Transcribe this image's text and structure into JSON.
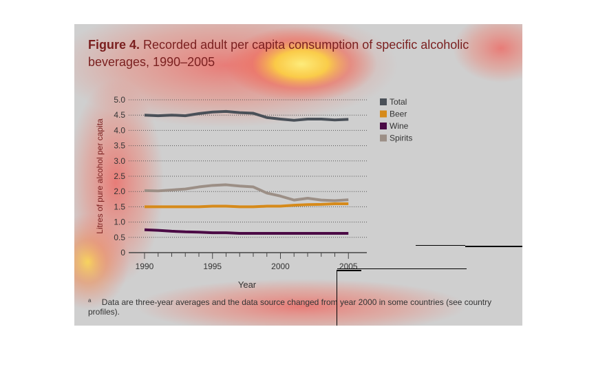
{
  "figure": {
    "label": "Figure 4.",
    "title": "Recorded adult per capita consumption of specific alcoholic beverages, 1990–2005",
    "footnote_marker": "a",
    "footnote": "Data are three-year averages and the data source changed from year 2000 in some countries (see country profiles)."
  },
  "chart_data": {
    "type": "line",
    "xlabel": "Year",
    "ylabel": "Litres of pure alcohol per capita",
    "xlim": [
      1990,
      2006
    ],
    "ylim": [
      0,
      5
    ],
    "x_ticks": [
      "1990",
      "1995",
      "2000",
      "2005"
    ],
    "y_ticks": [
      "0",
      "0.5",
      "1.0",
      "1.5",
      "2.0",
      "2.5",
      "3.0",
      "3.5",
      "4.0",
      "4.5",
      "5.0"
    ],
    "grid": "horizontal dotted",
    "legend_position": "right",
    "x": [
      1990,
      1991,
      1992,
      1993,
      1994,
      1995,
      1996,
      1997,
      1998,
      1999,
      2000,
      2001,
      2002,
      2003,
      2004,
      2005
    ],
    "series": [
      {
        "name": "Total",
        "color": "#4a5058",
        "values": [
          4.5,
          4.48,
          4.5,
          4.48,
          4.55,
          4.6,
          4.62,
          4.58,
          4.56,
          4.42,
          4.37,
          4.33,
          4.37,
          4.37,
          4.34,
          4.36
        ]
      },
      {
        "name": "Beer",
        "color": "#d68a1a",
        "values": [
          1.5,
          1.5,
          1.5,
          1.5,
          1.5,
          1.52,
          1.52,
          1.5,
          1.5,
          1.52,
          1.52,
          1.55,
          1.57,
          1.58,
          1.6,
          1.6
        ]
      },
      {
        "name": "Wine",
        "color": "#4b0a45",
        "values": [
          0.75,
          0.73,
          0.7,
          0.68,
          0.67,
          0.65,
          0.65,
          0.63,
          0.63,
          0.63,
          0.63,
          0.63,
          0.63,
          0.63,
          0.63,
          0.63
        ]
      },
      {
        "name": "Spirits",
        "color": "#9c8f86",
        "values": [
          2.03,
          2.02,
          2.05,
          2.08,
          2.15,
          2.2,
          2.22,
          2.18,
          2.15,
          1.95,
          1.85,
          1.72,
          1.78,
          1.72,
          1.7,
          1.73
        ]
      }
    ]
  }
}
